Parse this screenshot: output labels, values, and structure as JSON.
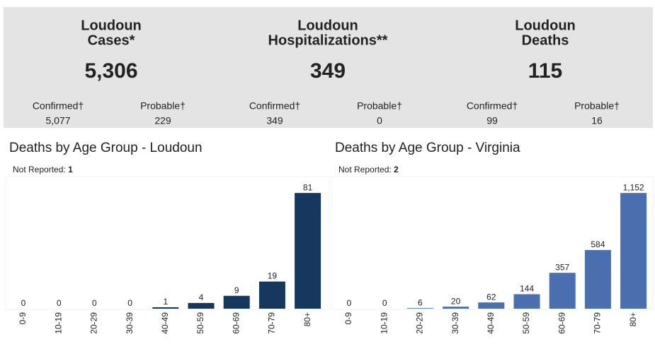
{
  "stats": [
    {
      "title": [
        "Loudoun",
        "Cases*"
      ],
      "value": "5,306",
      "confirmed_label": "Confirmed†",
      "confirmed": "5,077",
      "probable_label": "Probable†",
      "probable": "229"
    },
    {
      "title": [
        "Loudoun",
        "Hospitalizations**"
      ],
      "value": "349",
      "confirmed_label": "Confirmed†",
      "confirmed": "349",
      "probable_label": "Probable†",
      "probable": "0"
    },
    {
      "title": [
        "Loudoun",
        "Deaths"
      ],
      "value": "115",
      "confirmed_label": "Confirmed†",
      "confirmed": "99",
      "probable_label": "Probable†",
      "probable": "16"
    }
  ],
  "chart_data": [
    {
      "type": "bar",
      "title": "Deaths by Age Group - Loudoun",
      "annotation_label": "Not Reported:",
      "annotation_value": 1,
      "categories": [
        "0-9",
        "10-19",
        "20-29",
        "30-39",
        "40-49",
        "50-59",
        "60-69",
        "70-79",
        "80+"
      ],
      "values": [
        0,
        0,
        0,
        0,
        1,
        4,
        9,
        19,
        81
      ],
      "color": "#17375e",
      "ylim": [
        0,
        90
      ]
    },
    {
      "type": "bar",
      "title": "Deaths by Age Group - Virginia",
      "annotation_label": "Not Reported:",
      "annotation_value": 2,
      "categories": [
        "0-9",
        "10-19",
        "20-29",
        "30-39",
        "40-49",
        "50-59",
        "60-69",
        "70-79",
        "80+"
      ],
      "values": [
        0,
        0,
        6,
        20,
        62,
        144,
        357,
        584,
        1152
      ],
      "value_labels": [
        "0",
        "0",
        "6",
        "20",
        "62",
        "144",
        "357",
        "584",
        "1,152"
      ],
      "color": "#4a6eae",
      "ylim": [
        0,
        1280
      ]
    }
  ]
}
